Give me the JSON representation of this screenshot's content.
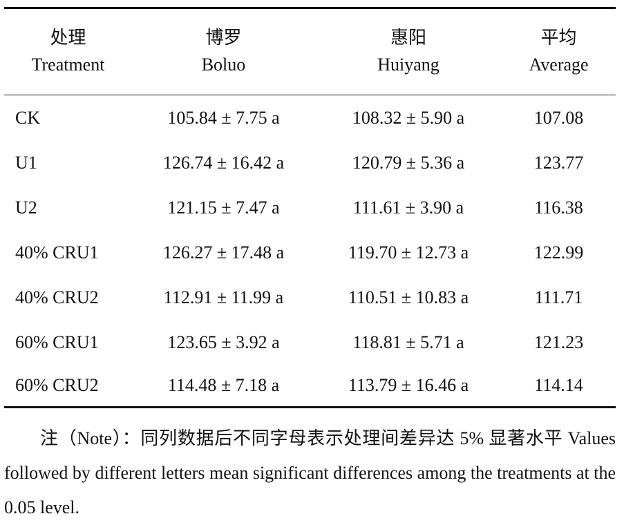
{
  "header": {
    "columns": [
      {
        "zh": "处理",
        "en": "Treatment"
      },
      {
        "zh": "博罗",
        "en": "Boluo"
      },
      {
        "zh": "惠阳",
        "en": "Huiyang"
      },
      {
        "zh": "平均",
        "en": "Average"
      }
    ]
  },
  "table": {
    "rows": [
      [
        "CK",
        "105.84 ± 7.75 a",
        "108.32 ± 5.90 a",
        "107.08"
      ],
      [
        "U1",
        "126.74 ± 16.42 a",
        "120.79 ± 5.36 a",
        "123.77"
      ],
      [
        "U2",
        "121.15 ± 7.47 a",
        "111.61 ± 3.90 a",
        "116.38"
      ],
      [
        "40% CRU1",
        "126.27 ± 17.48 a",
        "119.70 ± 12.73 a",
        "122.99"
      ],
      [
        "40% CRU2",
        "112.91 ± 11.99 a",
        "110.51 ± 10.83 a",
        "111.71"
      ],
      [
        "60% CRU1",
        "123.65 ± 3.92 a",
        "118.81 ± 5.71 a",
        "121.23"
      ],
      [
        "60% CRU2",
        "114.48 ± 7.18 a",
        "113.79 ± 16.46 a",
        "114.14"
      ]
    ]
  },
  "note": {
    "text": "注（Note）：同列数据后不同字母表示处理间差异达 5% 显著水平 Values followed by different letters mean significant differences among the treatments at the 0.05 level."
  }
}
